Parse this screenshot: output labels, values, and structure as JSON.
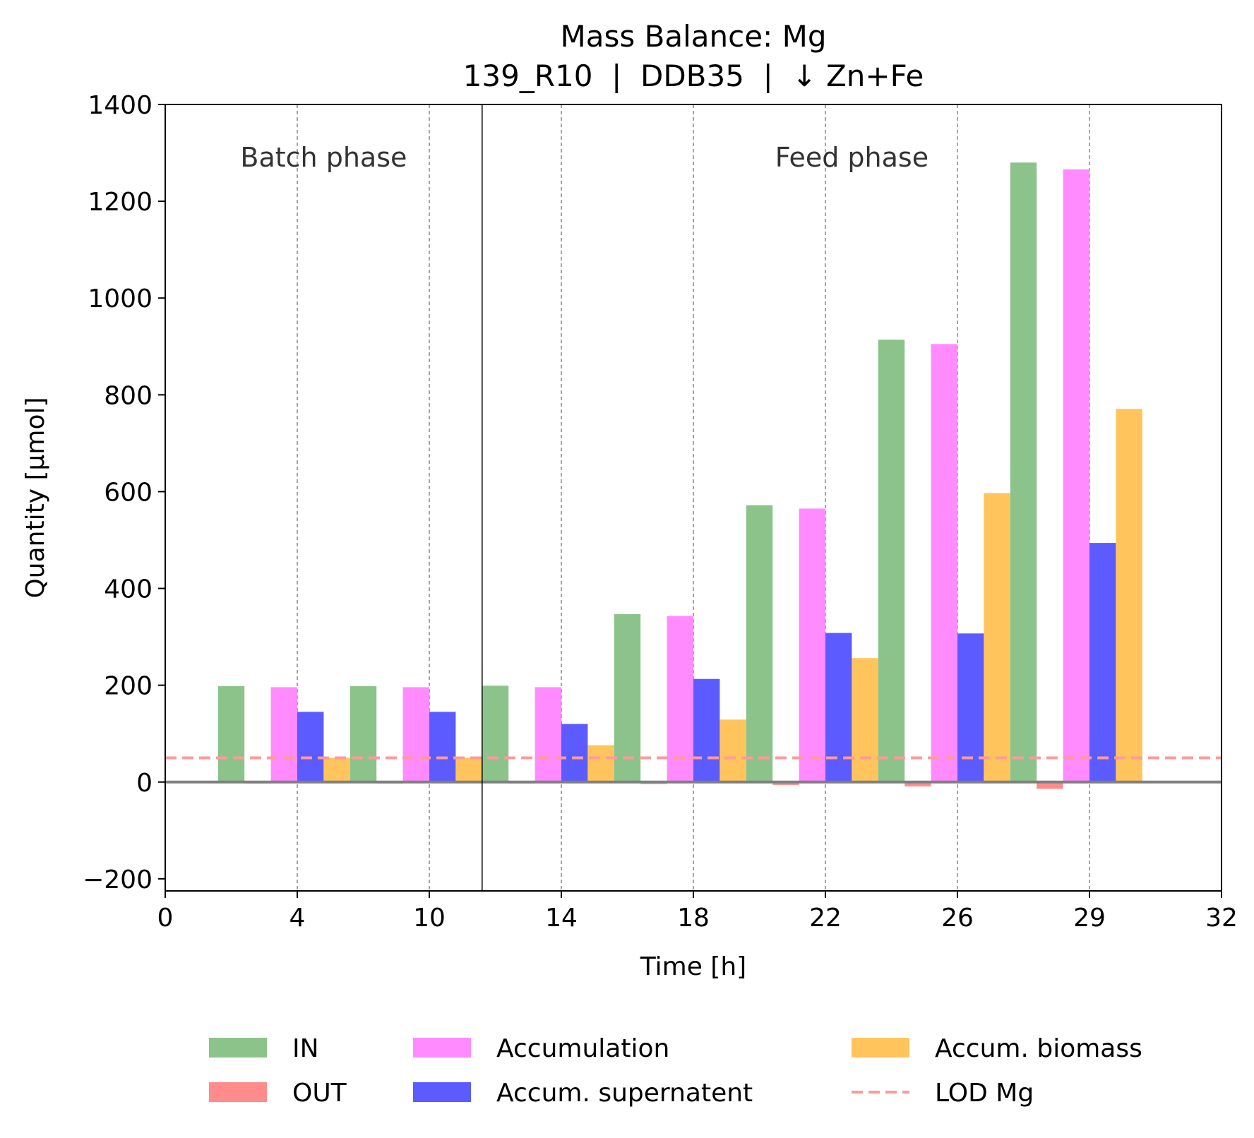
{
  "chart_data": {
    "type": "bar",
    "title": "Mass Balance: Mg",
    "subtitle": "139_R10  |  DDB35  |  ↓ Zn+Fe",
    "xlabel": "Time [h]",
    "ylabel": "Quantity [µmol]",
    "xlim": [
      0,
      8
    ],
    "ylim": [
      -225,
      1400
    ],
    "x_tick_labels": [
      "0",
      "4",
      "10",
      "14",
      "18",
      "22",
      "26",
      "29",
      "32"
    ],
    "y_ticks": [
      -200,
      0,
      200,
      400,
      600,
      800,
      1000,
      1200,
      1400
    ],
    "y_tick_labels": [
      "−200",
      "0",
      "200",
      "400",
      "600",
      "800",
      "1000",
      "1200",
      "1400"
    ],
    "grid": "vertical dashed lines at each sampling time",
    "phase_boundary": 2.4,
    "phases": [
      {
        "label": "Batch phase"
      },
      {
        "label": "Feed phase"
      }
    ],
    "intervals": [
      {
        "start": 0,
        "end": 1,
        "values": [
          198,
          -3,
          196,
          145,
          50
        ]
      },
      {
        "start": 1,
        "end": 2,
        "values": [
          198,
          -3,
          196,
          145,
          50
        ]
      },
      {
        "start": 2,
        "end": 3,
        "values": [
          199,
          -3,
          196,
          120,
          76
        ]
      },
      {
        "start": 3,
        "end": 4,
        "values": [
          347,
          -4,
          343,
          213,
          129
        ]
      },
      {
        "start": 4,
        "end": 5,
        "values": [
          572,
          -6,
          565,
          308,
          256
        ]
      },
      {
        "start": 5,
        "end": 6,
        "values": [
          914,
          -9,
          905,
          307,
          597
        ]
      },
      {
        "start": 6,
        "end": 7,
        "values": [
          1280,
          -14,
          1266,
          494,
          771
        ]
      }
    ],
    "series": [
      {
        "name": "IN",
        "color": "#8bc38b"
      },
      {
        "name": "OUT",
        "color": "#ff8b8b"
      },
      {
        "name": "Accumulation",
        "color": "#ff8bff"
      },
      {
        "name": "Accum. supernatent",
        "color": "#5b5bff"
      },
      {
        "name": "Accum. biomass",
        "color": "#ffc55c"
      }
    ],
    "reference_lines": [
      {
        "name": "LOD Mg",
        "y": 50,
        "color": "#ff9a9a",
        "style": "dashed"
      }
    ],
    "legend": {
      "position": "bottom",
      "entries": [
        {
          "label": "IN",
          "color": "#8bc38b",
          "kind": "patch"
        },
        {
          "label": "OUT",
          "color": "#ff8b8b",
          "kind": "patch"
        },
        {
          "label": "Accumulation",
          "color": "#ff8bff",
          "kind": "patch"
        },
        {
          "label": "Accum. supernatent",
          "color": "#5b5bff",
          "kind": "patch"
        },
        {
          "label": "Accum. biomass",
          "color": "#ffc55c",
          "kind": "patch"
        },
        {
          "label": "LOD Mg",
          "color": "#ff9a9a",
          "kind": "dashed-line"
        }
      ]
    }
  }
}
